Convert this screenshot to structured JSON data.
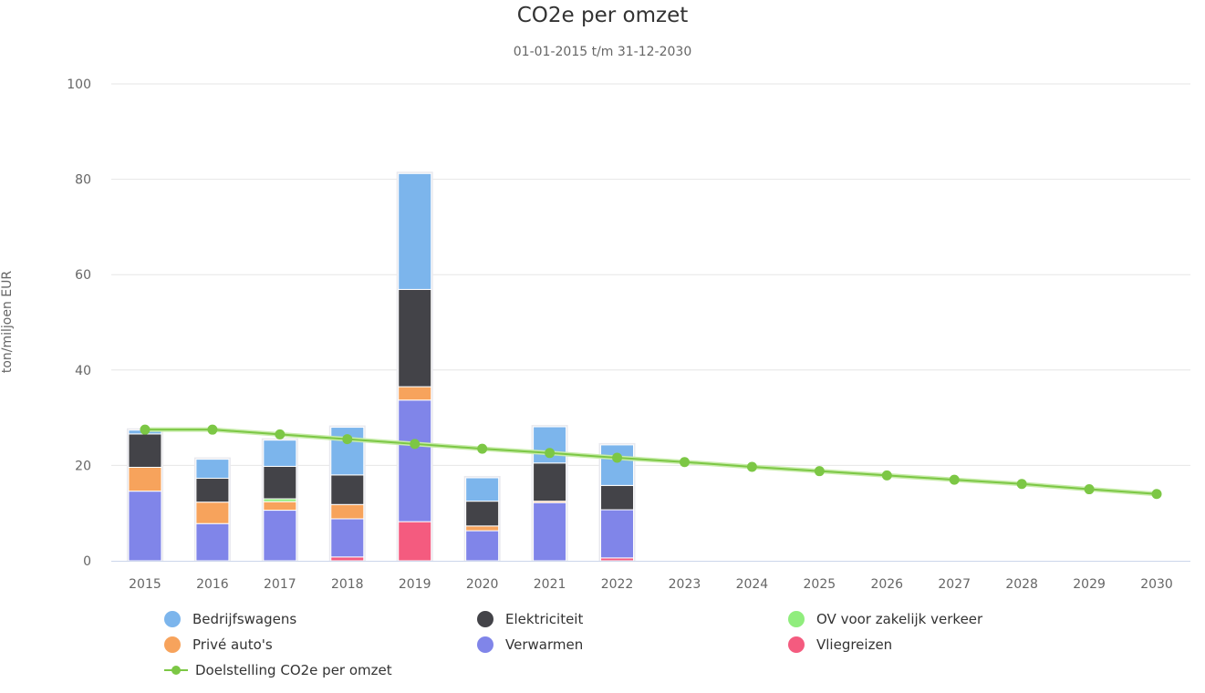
{
  "chart_data": {
    "type": "bar",
    "title": "CO2e per omzet",
    "subtitle": "01-01-2015 t/m 31-12-2030",
    "ylabel": "ton/miljoen EUR",
    "xlabel": "",
    "ylim": [
      0,
      100
    ],
    "yticks": [
      0,
      20,
      40,
      60,
      80,
      100
    ],
    "grid": true,
    "legend_position": "bottom",
    "categories": [
      "2015",
      "2016",
      "2017",
      "2018",
      "2019",
      "2020",
      "2021",
      "2022",
      "2023",
      "2024",
      "2025",
      "2026",
      "2027",
      "2028",
      "2029",
      "2030"
    ],
    "stacked": true,
    "series": [
      {
        "name": "Vliegreizen",
        "color": "#f45b7f",
        "values": [
          0,
          0,
          0,
          0.8,
          8.2,
          0,
          0,
          0.6,
          0,
          0,
          0,
          0,
          0,
          0,
          0,
          0
        ]
      },
      {
        "name": "Verwarmen",
        "color": "#8085e9",
        "values": [
          14.6,
          7.8,
          10.6,
          8.0,
          25.5,
          6.3,
          12.2,
          10.1,
          0,
          0,
          0,
          0,
          0,
          0,
          0,
          0
        ]
      },
      {
        "name": "Privé auto's",
        "color": "#f7a35c",
        "values": [
          5.0,
          4.5,
          1.8,
          3.0,
          2.8,
          1.0,
          0.3,
          0,
          0,
          0,
          0,
          0,
          0,
          0,
          0,
          0
        ]
      },
      {
        "name": "OV voor zakelijk verkeer",
        "color": "#90ed7d",
        "values": [
          0,
          0,
          0.6,
          0,
          0,
          0,
          0,
          0,
          0,
          0,
          0,
          0,
          0,
          0,
          0,
          0
        ]
      },
      {
        "name": "Elektriciteit",
        "color": "#434348",
        "values": [
          7.0,
          5.0,
          6.8,
          6.2,
          20.4,
          5.2,
          8.0,
          5.1,
          0,
          0,
          0,
          0,
          0,
          0,
          0,
          0
        ]
      },
      {
        "name": "Bedrijfswagens",
        "color": "#7cb5ec",
        "values": [
          0.8,
          4.0,
          5.5,
          10.0,
          24.3,
          4.9,
          7.6,
          8.5,
          0,
          0,
          0,
          0,
          0,
          0,
          0,
          0
        ]
      }
    ],
    "target_line": {
      "name": "Doelstelling CO2e per omzet",
      "type": "line",
      "color": "#7cc745",
      "values": [
        27.5,
        27.5,
        26.5,
        25.5,
        24.5,
        23.5,
        22.6,
        21.6,
        20.7,
        19.7,
        18.8,
        17.9,
        17.0,
        16.1,
        15.0,
        14.0
      ]
    },
    "legend": [
      {
        "name": "Bedrijfswagens",
        "color": "#7cb5ec",
        "symbol": "circle"
      },
      {
        "name": "Elektriciteit",
        "color": "#434348",
        "symbol": "circle"
      },
      {
        "name": "OV voor zakelijk verkeer",
        "color": "#90ed7d",
        "symbol": "circle"
      },
      {
        "name": "Privé auto's",
        "color": "#f7a35c",
        "symbol": "circle"
      },
      {
        "name": "Verwarmen",
        "color": "#8085e9",
        "symbol": "circle"
      },
      {
        "name": "Vliegreizen",
        "color": "#f45b7f",
        "symbol": "circle"
      },
      {
        "name": "Doelstelling CO2e per omzet",
        "color": "#7cc745",
        "symbol": "line-marker"
      }
    ]
  }
}
